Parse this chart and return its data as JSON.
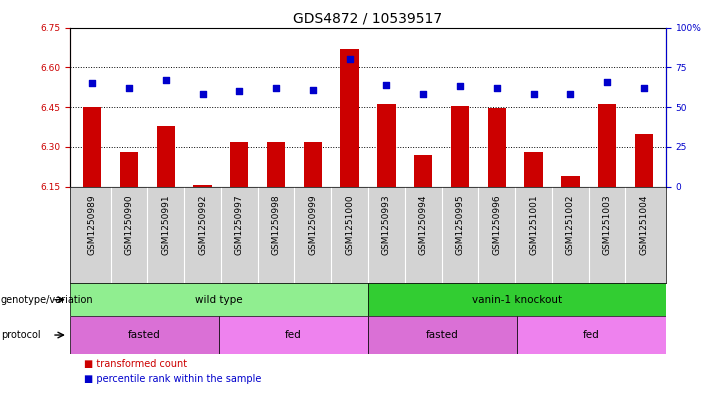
{
  "title": "GDS4872 / 10539517",
  "samples": [
    "GSM1250989",
    "GSM1250990",
    "GSM1250991",
    "GSM1250992",
    "GSM1250997",
    "GSM1250998",
    "GSM1250999",
    "GSM1251000",
    "GSM1250993",
    "GSM1250994",
    "GSM1250995",
    "GSM1250996",
    "GSM1251001",
    "GSM1251002",
    "GSM1251003",
    "GSM1251004"
  ],
  "red_values": [
    6.45,
    6.28,
    6.38,
    6.155,
    6.32,
    6.32,
    6.32,
    6.67,
    6.46,
    6.27,
    6.455,
    6.445,
    6.28,
    6.19,
    6.46,
    6.35
  ],
  "blue_values": [
    65,
    62,
    67,
    58,
    60,
    62,
    61,
    80,
    64,
    58,
    63,
    62,
    58,
    58,
    66,
    62
  ],
  "ylim_left": [
    6.15,
    6.75
  ],
  "ylim_right": [
    0,
    100
  ],
  "yticks_left": [
    6.15,
    6.3,
    6.45,
    6.6,
    6.75
  ],
  "yticks_right": [
    0,
    25,
    50,
    75,
    100
  ],
  "bar_color": "#cc0000",
  "dot_color": "#0000cc",
  "grid_color": "#000000",
  "genotype_labels": [
    {
      "label": "wild type",
      "start": 0,
      "end": 8,
      "color": "#90ee90"
    },
    {
      "label": "vanin-1 knockout",
      "start": 8,
      "end": 16,
      "color": "#32cd32"
    }
  ],
  "protocol_labels": [
    {
      "label": "fasted",
      "start": 0,
      "end": 4,
      "color": "#da70d6"
    },
    {
      "label": "fed",
      "start": 4,
      "end": 8,
      "color": "#ee82ee"
    },
    {
      "label": "fasted",
      "start": 8,
      "end": 12,
      "color": "#da70d6"
    },
    {
      "label": "fed",
      "start": 12,
      "end": 16,
      "color": "#ee82ee"
    }
  ],
  "legend_items": [
    {
      "label": "transformed count",
      "color": "#cc0000"
    },
    {
      "label": "percentile rank within the sample",
      "color": "#0000cc"
    }
  ],
  "bar_width": 0.5,
  "title_fontsize": 10,
  "tick_fontsize": 6.5,
  "label_fontsize": 7.5,
  "annotation_fontsize": 7
}
